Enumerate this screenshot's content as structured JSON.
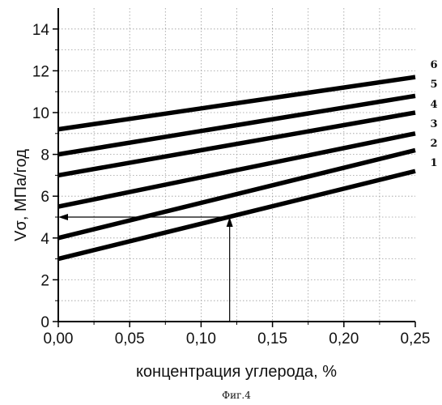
{
  "chart_data": {
    "type": "line",
    "xlabel": "концентрация углерода, %",
    "ylabel": "Vσ, МПа/год",
    "caption": "Фиг.4",
    "xlim": [
      0,
      0.25
    ],
    "ylim": [
      0,
      15
    ],
    "x_ticks": [
      0,
      0.05,
      0.1,
      0.15,
      0.2,
      0.25
    ],
    "x_tick_labels": [
      "0,00",
      "0,05",
      "0,10",
      "0,15",
      "0,20",
      "0,25"
    ],
    "y_ticks": [
      0,
      2,
      4,
      6,
      8,
      10,
      12,
      14
    ],
    "y_tick_labels": [
      "0",
      "2",
      "4",
      "6",
      "8",
      "10",
      "12",
      "14"
    ],
    "grid": true,
    "x": [
      0,
      0.25
    ],
    "series": [
      {
        "name": "1",
        "values": [
          3.0,
          7.2
        ]
      },
      {
        "name": "2",
        "values": [
          4.0,
          8.2
        ]
      },
      {
        "name": "3",
        "values": [
          5.5,
          9.0
        ]
      },
      {
        "name": "4",
        "values": [
          7.0,
          10.0
        ]
      },
      {
        "name": "5",
        "values": [
          8.0,
          10.8
        ]
      },
      {
        "name": "6",
        "values": [
          9.2,
          11.7
        ]
      }
    ],
    "annotation": {
      "x": 0.12,
      "y": 5.0
    }
  }
}
